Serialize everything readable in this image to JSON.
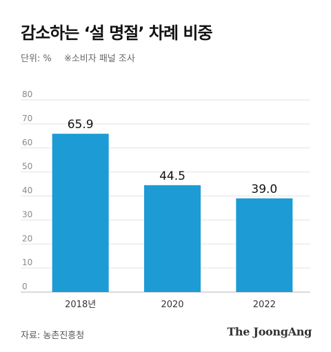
{
  "header": {
    "title": "감소하는 ‘설 명절’ 차례 비중",
    "unit": "단위: %",
    "note": "※소비자 패널 조사"
  },
  "chart_data": {
    "type": "bar",
    "title": "감소하는 ‘설 명절’ 차례 비중",
    "categories": [
      "2018년",
      "2020",
      "2022"
    ],
    "values": [
      65.9,
      44.5,
      39.0
    ],
    "value_labels": [
      "65.9",
      "44.5",
      "39.0"
    ],
    "ylim": [
      0,
      80
    ],
    "yticks": [
      0,
      10,
      20,
      30,
      40,
      50,
      60,
      70,
      80
    ],
    "grid": true,
    "bar_color": "#1d9bd4"
  },
  "footer": {
    "source": "자료: 농촌진흥청",
    "logo": "The JoongAng"
  }
}
